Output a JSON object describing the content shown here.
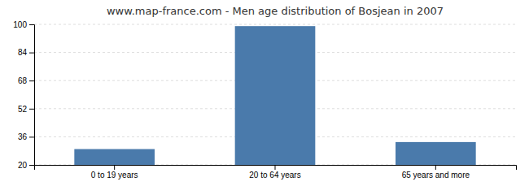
{
  "chart_data": {
    "type": "bar",
    "title": "www.map-france.com - Men age distribution of Bosjean in 2007",
    "categories": [
      "0 to 19 years",
      "20 to 64 years",
      "65 years and more"
    ],
    "values": [
      29,
      99,
      33
    ],
    "color": "#4a7aab",
    "ylim": [
      20,
      100
    ],
    "yticks": [
      20,
      36,
      52,
      68,
      84,
      100
    ],
    "grid": true
  }
}
